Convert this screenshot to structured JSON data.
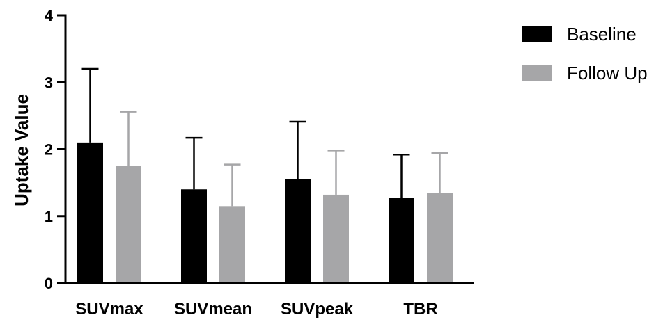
{
  "chart_data": {
    "type": "bar",
    "title": "",
    "xlabel": "",
    "ylabel": "Uptake Value",
    "ylim": [
      0,
      4
    ],
    "yticks": [
      0,
      1,
      2,
      3,
      4
    ],
    "categories": [
      "SUVmax",
      "SUVmean",
      "SUVpeak",
      "TBR"
    ],
    "series": [
      {
        "name": "Baseline",
        "color": "#000000",
        "values": [
          2.1,
          1.4,
          1.55,
          1.27
        ],
        "error_upper": [
          3.2,
          2.17,
          2.41,
          1.92
        ]
      },
      {
        "name": "Follow Up",
        "color": "#a6a6a8",
        "values": [
          1.75,
          1.15,
          1.32,
          1.35
        ],
        "error_upper": [
          2.56,
          1.77,
          1.98,
          1.94
        ]
      }
    ],
    "grid": false,
    "legend_position": "top-right"
  }
}
